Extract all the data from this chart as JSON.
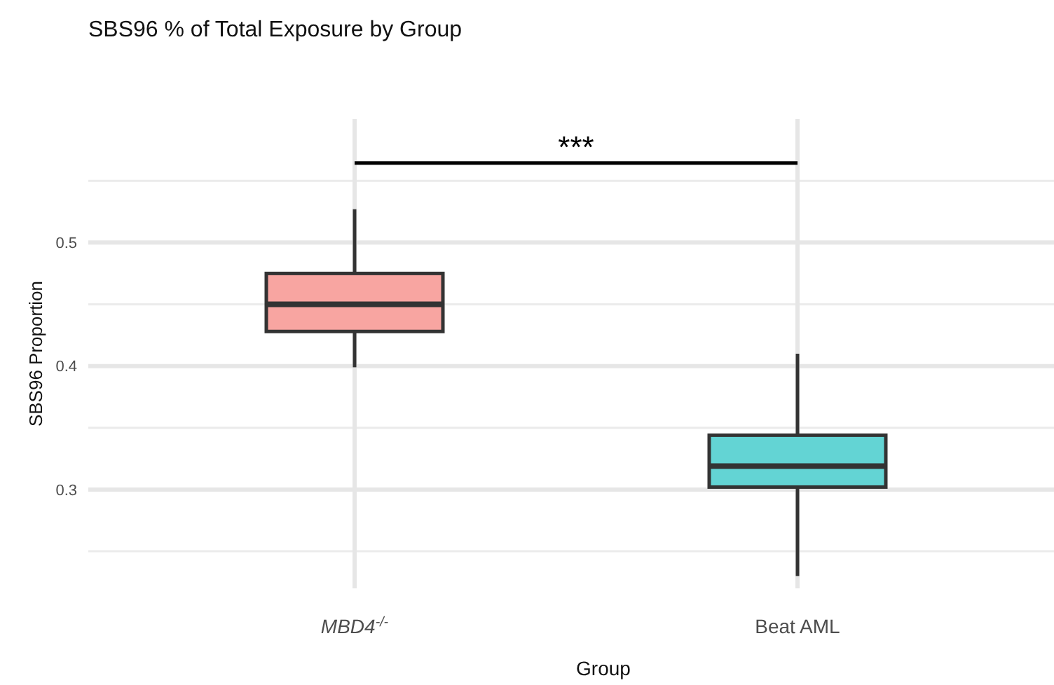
{
  "chart_data": {
    "type": "box",
    "title": "SBS96 % of Total Exposure by Group",
    "xlabel": "Group",
    "ylabel": "SBS96 Proportion",
    "categories": [
      "MBD4$^{-/-}$",
      "Beat AML"
    ],
    "colors": [
      "#f8a5a1",
      "#63d4d4"
    ],
    "boxes": [
      {
        "low": 0.399,
        "q1": 0.428,
        "median": 0.45,
        "q3": 0.475,
        "high": 0.527
      },
      {
        "low": 0.23,
        "q1": 0.302,
        "median": 0.319,
        "q3": 0.344,
        "high": 0.41
      }
    ],
    "ylim": [
      0.22,
      0.6
    ],
    "yticks": [
      0.3,
      0.4,
      0.5
    ],
    "grid": true,
    "annotations": [
      "***"
    ]
  }
}
